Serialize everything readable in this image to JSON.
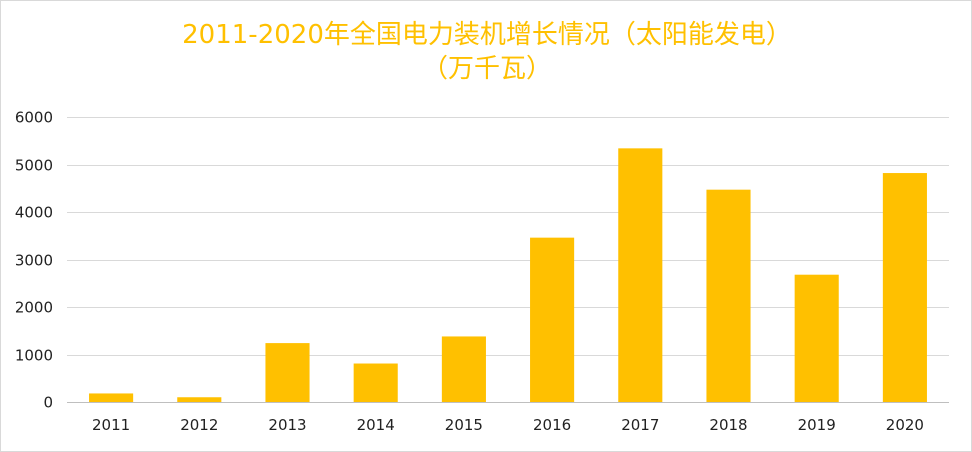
{
  "colors": {
    "bar": "#FFC000",
    "title": "#FFC000",
    "gridline": "#d9d9d9",
    "axis": "#bfbfbf",
    "text": "#222222"
  },
  "chart_data": {
    "type": "bar",
    "title_lines": [
      "2011-2020年全国电力装机增长情况（太阳能发电）",
      "（万千瓦）"
    ],
    "categories": [
      "2011",
      "2012",
      "2013",
      "2014",
      "2015",
      "2016",
      "2017",
      "2018",
      "2019",
      "2020"
    ],
    "values": [
      180,
      100,
      1240,
      810,
      1380,
      3460,
      5340,
      4470,
      2680,
      4820
    ],
    "ylim": [
      0,
      6000
    ],
    "yticks": [
      0,
      1000,
      2000,
      3000,
      4000,
      5000,
      6000
    ],
    "grid": true,
    "legend": "none"
  }
}
